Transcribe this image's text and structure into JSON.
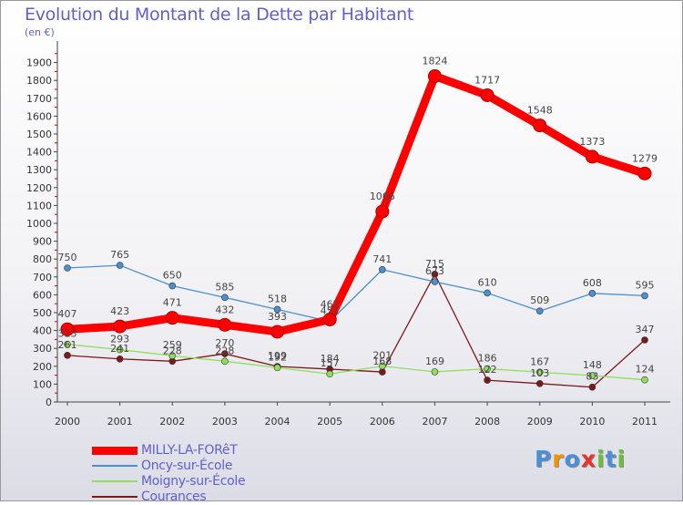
{
  "title": "Evolution du Montant de la Dette par Habitant",
  "unit": "(en €)",
  "logo": {
    "text": "Proxiti",
    "colors": [
      "#4a90d9",
      "#f39200",
      "#4a90d9",
      "#e63329",
      "#6cbf3c",
      "#4a90d9",
      "#6cbf3c"
    ]
  },
  "chart_data": {
    "type": "line",
    "x": [
      "2000",
      "2001",
      "2002",
      "2003",
      "2004",
      "2005",
      "2006",
      "2007",
      "2008",
      "2009",
      "2010",
      "2011"
    ],
    "ylim": [
      0,
      2000
    ],
    "yticks": [
      0,
      100,
      200,
      300,
      400,
      500,
      600,
      700,
      800,
      900,
      1000,
      1100,
      1200,
      1300,
      1400,
      1500,
      1600,
      1700,
      1800,
      1900
    ],
    "grid": false,
    "legend_position": "bottom-left",
    "series": [
      {
        "name": "MILLY-LA-FORêT",
        "color": "#ff0000",
        "values": [
          407,
          423,
          471,
          432,
          393,
          462,
          1066,
          1824,
          1717,
          1548,
          1373,
          1279
        ]
      },
      {
        "name": "Oncy-sur-École",
        "color": "#4a90d0",
        "values": [
          750,
          765,
          650,
          585,
          518,
          451,
          741,
          673,
          610,
          509,
          608,
          595
        ]
      },
      {
        "name": "Moigny-sur-École",
        "color": "#8ee05c",
        "values": [
          323,
          293,
          259,
          228,
          192,
          157,
          201,
          169,
          186,
          167,
          148,
          124
        ]
      },
      {
        "name": "Courances",
        "color": "#7a1a1a",
        "values": [
          261,
          241,
          228,
          270,
          199,
          184,
          168,
          715,
          122,
          103,
          83,
          347
        ]
      }
    ]
  }
}
